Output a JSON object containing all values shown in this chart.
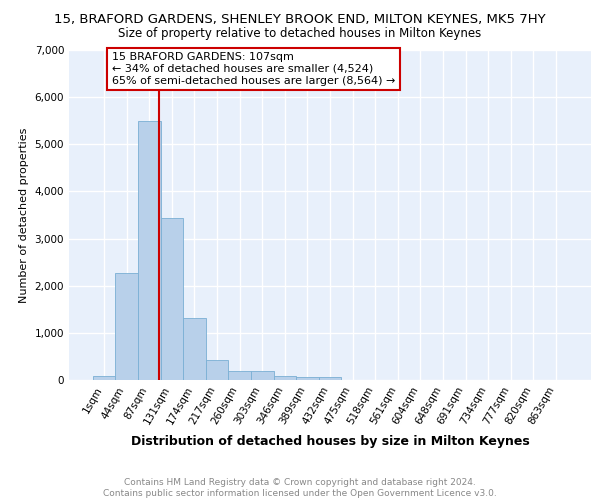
{
  "title_line1": "15, BRAFORD GARDENS, SHENLEY BROOK END, MILTON KEYNES, MK5 7HY",
  "title_line2": "Size of property relative to detached houses in Milton Keynes",
  "xlabel": "Distribution of detached houses by size in Milton Keynes",
  "ylabel": "Number of detached properties",
  "footnote": "Contains HM Land Registry data © Crown copyright and database right 2024.\nContains public sector information licensed under the Open Government Licence v3.0.",
  "bar_labels": [
    "1sqm",
    "44sqm",
    "87sqm",
    "131sqm",
    "174sqm",
    "217sqm",
    "260sqm",
    "303sqm",
    "346sqm",
    "389sqm",
    "432sqm",
    "475sqm",
    "518sqm",
    "561sqm",
    "604sqm",
    "648sqm",
    "691sqm",
    "734sqm",
    "777sqm",
    "820sqm",
    "863sqm"
  ],
  "bar_values": [
    75,
    2280,
    5490,
    3440,
    1310,
    430,
    185,
    185,
    95,
    65,
    60,
    0,
    0,
    0,
    0,
    0,
    0,
    0,
    0,
    0,
    0
  ],
  "bar_color": "#b8d0ea",
  "bar_edge_color": "#7aafd4",
  "vline_color": "#cc0000",
  "vline_x_index": 2,
  "annotation_text": "15 BRAFORD GARDENS: 107sqm\n← 34% of detached houses are smaller (4,524)\n65% of semi-detached houses are larger (8,564) →",
  "annotation_box_color": "#ffffff",
  "annotation_box_edge": "#cc0000",
  "ylim": [
    0,
    7000
  ],
  "yticks": [
    0,
    1000,
    2000,
    3000,
    4000,
    5000,
    6000,
    7000
  ],
  "background_color": "#e8f0fb",
  "grid_color": "#ffffff",
  "title1_fontsize": 9.5,
  "title2_fontsize": 8.5,
  "xlabel_fontsize": 9,
  "ylabel_fontsize": 8,
  "tick_fontsize": 7.5,
  "footnote_fontsize": 6.5,
  "annotation_fontsize": 8
}
